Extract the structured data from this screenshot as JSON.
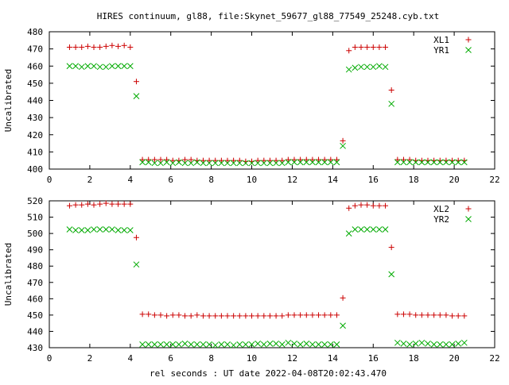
{
  "title": "HIRES continuum, gl88, file:Skynet_59677_gl88_77549_25248.cyb.txt",
  "xlabel": "rel seconds : UT date 2022-04-08T20:02:43.470",
  "colors": {
    "series_red": "#cc0000",
    "series_green": "#00aa00",
    "axis": "#000000"
  },
  "chart_data": [
    {
      "type": "scatter",
      "ylabel": "Uncalibrated",
      "xlim": [
        0,
        22
      ],
      "ylim": [
        400,
        480
      ],
      "xticks": [
        0,
        2,
        4,
        6,
        8,
        10,
        12,
        14,
        16,
        18,
        20,
        22
      ],
      "yticks": [
        400,
        410,
        420,
        430,
        440,
        450,
        460,
        470,
        480
      ],
      "legend_position": "top-right",
      "series": [
        {
          "name": "XL1",
          "marker": "plus",
          "color": "#cc0000",
          "x": [
            1.0,
            1.3,
            1.6,
            1.9,
            2.2,
            2.5,
            2.8,
            3.1,
            3.4,
            3.7,
            4.0,
            4.3,
            4.6,
            4.9,
            5.2,
            5.5,
            5.8,
            6.1,
            6.4,
            6.7,
            7.0,
            7.3,
            7.6,
            7.9,
            8.2,
            8.5,
            8.8,
            9.1,
            9.4,
            9.7,
            10.0,
            10.3,
            10.6,
            10.9,
            11.2,
            11.5,
            11.8,
            12.1,
            12.4,
            12.7,
            13.0,
            13.3,
            13.6,
            13.9,
            14.2,
            14.5,
            14.8,
            15.1,
            15.4,
            15.7,
            16.0,
            16.3,
            16.6,
            16.9,
            17.2,
            17.5,
            17.8,
            18.1,
            18.4,
            18.7,
            19.0,
            19.3,
            19.6,
            19.9,
            20.2,
            20.5
          ],
          "y": [
            471,
            471,
            471,
            471.5,
            471,
            471,
            471.5,
            472,
            471.5,
            472,
            471,
            451,
            405.5,
            405.5,
            405.5,
            405.5,
            405.5,
            405,
            405,
            405.5,
            405.5,
            405,
            405,
            405,
            405,
            405,
            405,
            405,
            405,
            404.5,
            404.5,
            405,
            405,
            405,
            405,
            405,
            405.5,
            405.5,
            405.5,
            405.5,
            405.5,
            405.5,
            405.5,
            405.5,
            405.5,
            416.5,
            469,
            471,
            471,
            471,
            471,
            471,
            471,
            446,
            405.5,
            405.5,
            405.5,
            405,
            405,
            405,
            405,
            405,
            405,
            405,
            405,
            405
          ]
        },
        {
          "name": "YR1",
          "marker": "cross",
          "color": "#00aa00",
          "x": [
            1.0,
            1.3,
            1.6,
            1.9,
            2.2,
            2.5,
            2.8,
            3.1,
            3.4,
            3.7,
            4.0,
            4.3,
            4.6,
            4.9,
            5.2,
            5.5,
            5.8,
            6.1,
            6.4,
            6.7,
            7.0,
            7.3,
            7.6,
            7.9,
            8.2,
            8.5,
            8.8,
            9.1,
            9.4,
            9.7,
            10.0,
            10.3,
            10.6,
            10.9,
            11.2,
            11.5,
            11.8,
            12.1,
            12.4,
            12.7,
            13.0,
            13.3,
            13.6,
            13.9,
            14.2,
            14.5,
            14.8,
            15.1,
            15.4,
            15.7,
            16.0,
            16.3,
            16.6,
            16.9,
            17.2,
            17.5,
            17.8,
            18.1,
            18.4,
            18.7,
            19.0,
            19.3,
            19.6,
            19.9,
            20.2,
            20.5
          ],
          "y": [
            460,
            460,
            459.5,
            460,
            460,
            459.5,
            459.5,
            460,
            460,
            460,
            460,
            442.5,
            404,
            404,
            403.5,
            403.5,
            404,
            403.5,
            404,
            403.5,
            403.5,
            404,
            403.5,
            403.5,
            403.5,
            403.5,
            403.5,
            403.5,
            403.5,
            403.5,
            403.5,
            403.5,
            403.5,
            403.5,
            403.5,
            403.5,
            404,
            404,
            404,
            404,
            404,
            404,
            404,
            404,
            404,
            413.5,
            458,
            459,
            459.5,
            459.5,
            459.5,
            460,
            459.5,
            438,
            404,
            404,
            404,
            404,
            404,
            404,
            404,
            404,
            404,
            404,
            404,
            404
          ]
        }
      ]
    },
    {
      "type": "scatter",
      "ylabel": "Uncalibrated",
      "xlim": [
        0,
        22
      ],
      "ylim": [
        430,
        520
      ],
      "xticks": [
        0,
        2,
        4,
        6,
        8,
        10,
        12,
        14,
        16,
        18,
        20,
        22
      ],
      "yticks": [
        430,
        440,
        450,
        460,
        470,
        480,
        490,
        500,
        510,
        520
      ],
      "legend_position": "top-right",
      "series": [
        {
          "name": "XL2",
          "marker": "plus",
          "color": "#cc0000",
          "x": [
            1.0,
            1.3,
            1.6,
            1.9,
            2.2,
            2.5,
            2.8,
            3.1,
            3.4,
            3.7,
            4.0,
            4.3,
            4.6,
            4.9,
            5.2,
            5.5,
            5.8,
            6.1,
            6.4,
            6.7,
            7.0,
            7.3,
            7.6,
            7.9,
            8.2,
            8.5,
            8.8,
            9.1,
            9.4,
            9.7,
            10.0,
            10.3,
            10.6,
            10.9,
            11.2,
            11.5,
            11.8,
            12.1,
            12.4,
            12.7,
            13.0,
            13.3,
            13.6,
            13.9,
            14.2,
            14.5,
            14.8,
            15.1,
            15.4,
            15.7,
            16.0,
            16.3,
            16.6,
            16.9,
            17.2,
            17.5,
            17.8,
            18.1,
            18.4,
            18.7,
            19.0,
            19.3,
            19.6,
            19.9,
            20.2,
            20.5
          ],
          "y": [
            517,
            517.5,
            517.5,
            518,
            517.5,
            518,
            518.5,
            518,
            518,
            518,
            518,
            497.5,
            450.5,
            450.5,
            450,
            450,
            449.5,
            450,
            450,
            449.5,
            449.5,
            450,
            449.5,
            449.5,
            449.5,
            449.5,
            449.5,
            449.5,
            449.5,
            449.5,
            449.5,
            449.5,
            449.5,
            449.5,
            449.5,
            449.5,
            450,
            450,
            450,
            450,
            450,
            450,
            450,
            450,
            450,
            460.5,
            515.5,
            517,
            517.5,
            517.5,
            517,
            517,
            517,
            491.5,
            450.5,
            450.5,
            450.5,
            450,
            450,
            450,
            450,
            450,
            450,
            449.5,
            449.5,
            449.5
          ]
        },
        {
          "name": "YR2",
          "marker": "cross",
          "color": "#00aa00",
          "x": [
            1.0,
            1.3,
            1.6,
            1.9,
            2.2,
            2.5,
            2.8,
            3.1,
            3.4,
            3.7,
            4.0,
            4.3,
            4.6,
            4.9,
            5.2,
            5.5,
            5.8,
            6.1,
            6.4,
            6.7,
            7.0,
            7.3,
            7.6,
            7.9,
            8.2,
            8.5,
            8.8,
            9.1,
            9.4,
            9.7,
            10.0,
            10.3,
            10.6,
            10.9,
            11.2,
            11.5,
            11.8,
            12.1,
            12.4,
            12.7,
            13.0,
            13.3,
            13.6,
            13.9,
            14.2,
            14.5,
            14.8,
            15.1,
            15.4,
            15.7,
            16.0,
            16.3,
            16.6,
            16.9,
            17.2,
            17.5,
            17.8,
            18.1,
            18.4,
            18.7,
            19.0,
            19.3,
            19.6,
            19.9,
            20.2,
            20.5
          ],
          "y": [
            502.5,
            502,
            502,
            502,
            502.5,
            502.5,
            502.5,
            502.5,
            502,
            502,
            502,
            481,
            432,
            432,
            432,
            432,
            432,
            432,
            432,
            432.5,
            432,
            432,
            432,
            432,
            431.5,
            432,
            432,
            431.5,
            432,
            432,
            432,
            432.5,
            432,
            432.5,
            432.5,
            432,
            433,
            432.5,
            432,
            432.5,
            432,
            432,
            432,
            432,
            432,
            443.5,
            500,
            502.5,
            502.5,
            502.5,
            502.5,
            502.5,
            502.5,
            475,
            433,
            432.5,
            432,
            432.5,
            433,
            432.5,
            432,
            432,
            432,
            432,
            432.5,
            433
          ]
        }
      ]
    }
  ]
}
